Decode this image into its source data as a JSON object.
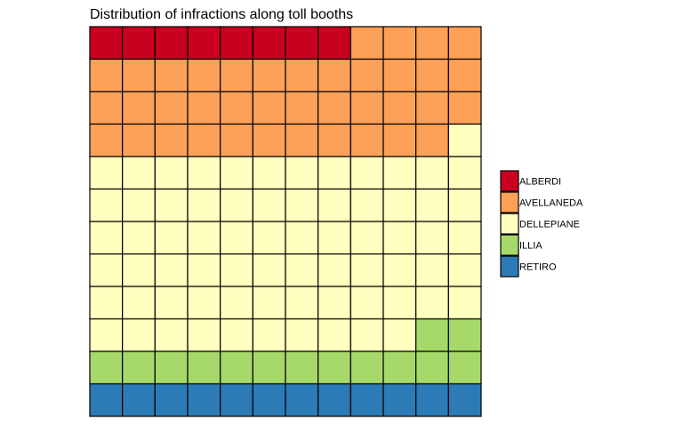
{
  "chart_data": {
    "type": "waffle",
    "title": "Distribution of infractions along toll booths",
    "grid": {
      "columns": 12,
      "rows": 12,
      "fill_order": "row-major-top-left"
    },
    "series": [
      {
        "name": "ALBERDI",
        "value": 8,
        "color": "#ca0020"
      },
      {
        "name": "AVELLANEDA",
        "value": 39,
        "color": "#fda058"
      },
      {
        "name": "DELLEPIANE",
        "value": 71,
        "color": "#ffffbf"
      },
      {
        "name": "ILLIA",
        "value": 14,
        "color": "#a6d96a"
      },
      {
        "name": "RETIRO",
        "value": 12,
        "color": "#2c7bb6"
      }
    ],
    "legend": {
      "position": "right"
    }
  }
}
